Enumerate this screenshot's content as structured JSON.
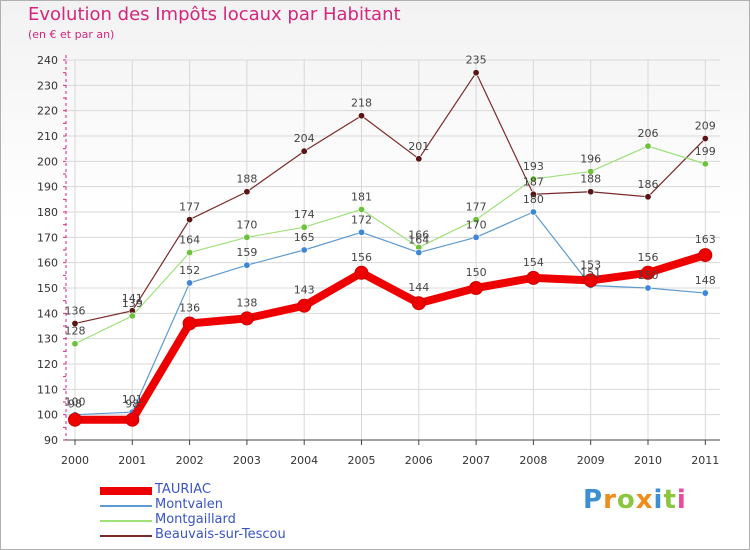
{
  "header": {
    "title": "Evolution des Impôts locaux par Habitant",
    "subtitle": "(en € et par an)"
  },
  "colors": {
    "title": "#d4267e",
    "legend_text": "#3a54c4",
    "grid": "#d8d8d8",
    "axis": "#444444",
    "dashed_axis": "#d4267e"
  },
  "logo": {
    "text": "Proxiti",
    "letter_colors": [
      "#3d8fd1",
      "#f08c1a",
      "#8cc63f",
      "#f08c1a",
      "#3d8fd1",
      "#8cc63f",
      "#e84c9b"
    ]
  },
  "chart_data": {
    "type": "line",
    "title": "Evolution des Impôts locaux par Habitant",
    "subtitle": "(en € et par an)",
    "xlabel": "",
    "ylabel": "",
    "ylim": [
      90,
      240
    ],
    "ytick_step": 10,
    "grid": true,
    "legend_position": "bottom-left",
    "x": [
      "2000",
      "2001",
      "2002",
      "2003",
      "2004",
      "2005",
      "2006",
      "2007",
      "2008",
      "2009",
      "2010",
      "2011"
    ],
    "series": [
      {
        "name": "TAURIAC",
        "values": [
          98,
          98,
          136,
          138,
          143,
          156,
          144,
          150,
          154,
          153,
          156,
          163
        ],
        "labels": [
          "98",
          "98",
          "136",
          "138",
          "143",
          "156",
          "144",
          "150",
          "154",
          "153",
          "156",
          "163"
        ],
        "color": "#ee0000",
        "marker_color": "#ee0000",
        "width": 8
      },
      {
        "name": "Montvalen",
        "values": [
          100,
          101,
          152,
          159,
          165,
          172,
          164,
          170,
          180,
          151,
          150,
          148
        ],
        "labels": [
          "100",
          "101",
          "152",
          "159",
          "165",
          "172",
          "164",
          "170",
          "180",
          "151",
          "150",
          "148"
        ],
        "color": "#5c9ad0",
        "marker_color": "#3f87d6",
        "width": 1.2
      },
      {
        "name": "Montgaillard",
        "values": [
          128,
          139,
          164,
          170,
          174,
          181,
          166,
          177,
          193,
          196,
          206,
          199
        ],
        "labels": [
          "128",
          "139",
          "164",
          "170",
          "174",
          "181",
          "166",
          "177",
          "193",
          "196",
          "206",
          "199"
        ],
        "color": "#9fe07a",
        "marker_color": "#6cc23a",
        "width": 1.2
      },
      {
        "name": "Beauvais-sur-Tescou",
        "values": [
          136,
          141,
          177,
          188,
          204,
          218,
          201,
          235,
          187,
          188,
          186,
          209
        ],
        "labels": [
          "136",
          "141",
          "177",
          "188",
          "204",
          "218",
          "201",
          "235",
          "187",
          "188",
          "186",
          "209"
        ],
        "color": "#7a2a2a",
        "marker_color": "#5a1414",
        "width": 1.2
      }
    ]
  }
}
